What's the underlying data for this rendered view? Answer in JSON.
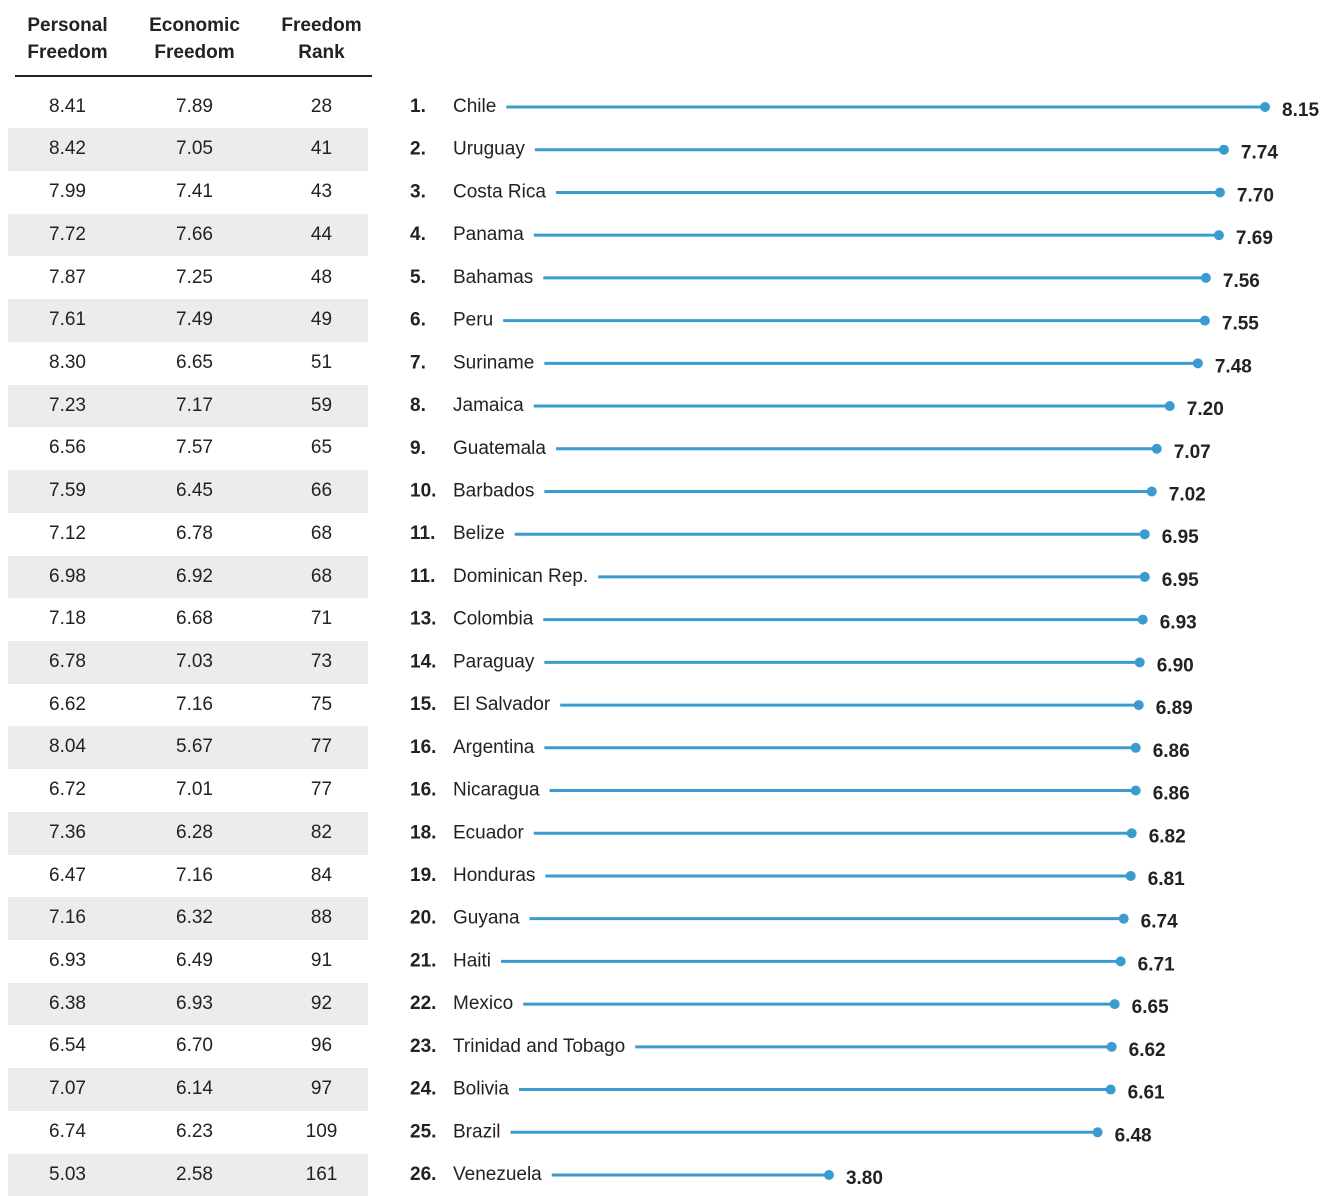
{
  "table": {
    "columns": [
      "Personal Freedom",
      "Economic Freedom",
      "Freedom Rank"
    ],
    "rows": [
      [
        "8.41",
        "7.89",
        "28"
      ],
      [
        "8.42",
        "7.05",
        "41"
      ],
      [
        "7.99",
        "7.41",
        "43"
      ],
      [
        "7.72",
        "7.66",
        "44"
      ],
      [
        "7.87",
        "7.25",
        "48"
      ],
      [
        "7.61",
        "7.49",
        "49"
      ],
      [
        "8.30",
        "6.65",
        "51"
      ],
      [
        "7.23",
        "7.17",
        "59"
      ],
      [
        "6.56",
        "7.57",
        "65"
      ],
      [
        "7.59",
        "6.45",
        "66"
      ],
      [
        "7.12",
        "6.78",
        "68"
      ],
      [
        "6.98",
        "6.92",
        "68"
      ],
      [
        "7.18",
        "6.68",
        "71"
      ],
      [
        "6.78",
        "7.03",
        "73"
      ],
      [
        "6.62",
        "7.16",
        "75"
      ],
      [
        "8.04",
        "5.67",
        "77"
      ],
      [
        "6.72",
        "7.01",
        "77"
      ],
      [
        "7.36",
        "6.28",
        "82"
      ],
      [
        "6.47",
        "7.16",
        "84"
      ],
      [
        "7.16",
        "6.32",
        "88"
      ],
      [
        "6.93",
        "6.49",
        "91"
      ],
      [
        "6.38",
        "6.93",
        "92"
      ],
      [
        "6.54",
        "6.70",
        "96"
      ],
      [
        "7.07",
        "6.14",
        "97"
      ],
      [
        "6.74",
        "6.23",
        "109"
      ],
      [
        "5.03",
        "2.58",
        "161"
      ]
    ]
  },
  "chart_data": {
    "type": "lollipop",
    "ranks": [
      "1.",
      "2.",
      "3.",
      "4.",
      "5.",
      "6.",
      "7.",
      "8.",
      "9.",
      "10.",
      "11.",
      "11.",
      "13.",
      "14.",
      "15.",
      "16.",
      "16.",
      "18.",
      "19.",
      "20.",
      "21.",
      "22.",
      "23.",
      "24.",
      "25.",
      "26."
    ],
    "categories": [
      "Chile",
      "Uruguay",
      "Costa Rica",
      "Panama",
      "Bahamas",
      "Peru",
      "Suriname",
      "Jamaica",
      "Guatemala",
      "Barbados",
      "Belize",
      "Dominican Rep.",
      "Colombia",
      "Paraguay",
      "El Salvador",
      "Argentina",
      "Nicaragua",
      "Ecuador",
      "Honduras",
      "Guyana",
      "Haiti",
      "Mexico",
      "Trinidad and Tobago",
      "Bolivia",
      "Brazil",
      "Venezuela"
    ],
    "values": [
      8.15,
      7.74,
      7.7,
      7.69,
      7.56,
      7.55,
      7.48,
      7.2,
      7.07,
      7.02,
      6.95,
      6.95,
      6.93,
      6.9,
      6.89,
      6.86,
      6.86,
      6.82,
      6.81,
      6.74,
      6.71,
      6.65,
      6.62,
      6.61,
      6.48,
      3.8
    ],
    "value_labels": [
      "8.15",
      "7.74",
      "7.70",
      "7.69",
      "7.56",
      "7.55",
      "7.48",
      "7.20",
      "7.07",
      "7.02",
      "6.95",
      "6.95",
      "6.93",
      "6.90",
      "6.89",
      "6.86",
      "6.86",
      "6.82",
      "6.81",
      "6.74",
      "6.71",
      "6.65",
      "6.62",
      "6.61",
      "6.48",
      "3.80"
    ],
    "color": "#3a9bd0"
  }
}
